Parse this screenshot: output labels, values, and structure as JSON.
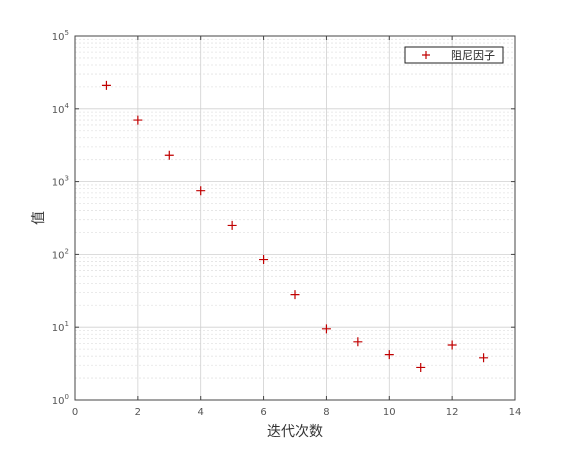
{
  "chart_data": {
    "type": "scatter",
    "title": "",
    "xlabel": "迭代次数",
    "ylabel": "值",
    "xlim": [
      0,
      14
    ],
    "ylim": [
      1,
      100000
    ],
    "y_scale": "log",
    "x_ticks": [
      "0",
      "2",
      "4",
      "6",
      "8",
      "10",
      "12",
      "14"
    ],
    "y_tick_bases": [
      "10",
      "10",
      "10",
      "10",
      "10",
      "10"
    ],
    "y_tick_exponents": [
      "0",
      "1",
      "2",
      "3",
      "4",
      "5"
    ],
    "grid": true,
    "legend": {
      "position": "top-right",
      "marker": "+"
    },
    "series": [
      {
        "name": "阻尼因子",
        "color": "#c00000",
        "marker": "plus",
        "x": [
          1,
          2,
          3,
          4,
          5,
          6,
          7,
          8,
          9,
          10,
          11,
          12,
          13
        ],
        "y": [
          21000,
          7000,
          2300,
          750,
          250,
          85,
          28,
          9.5,
          6.3,
          4.2,
          2.8,
          5.7,
          3.8
        ]
      }
    ]
  }
}
